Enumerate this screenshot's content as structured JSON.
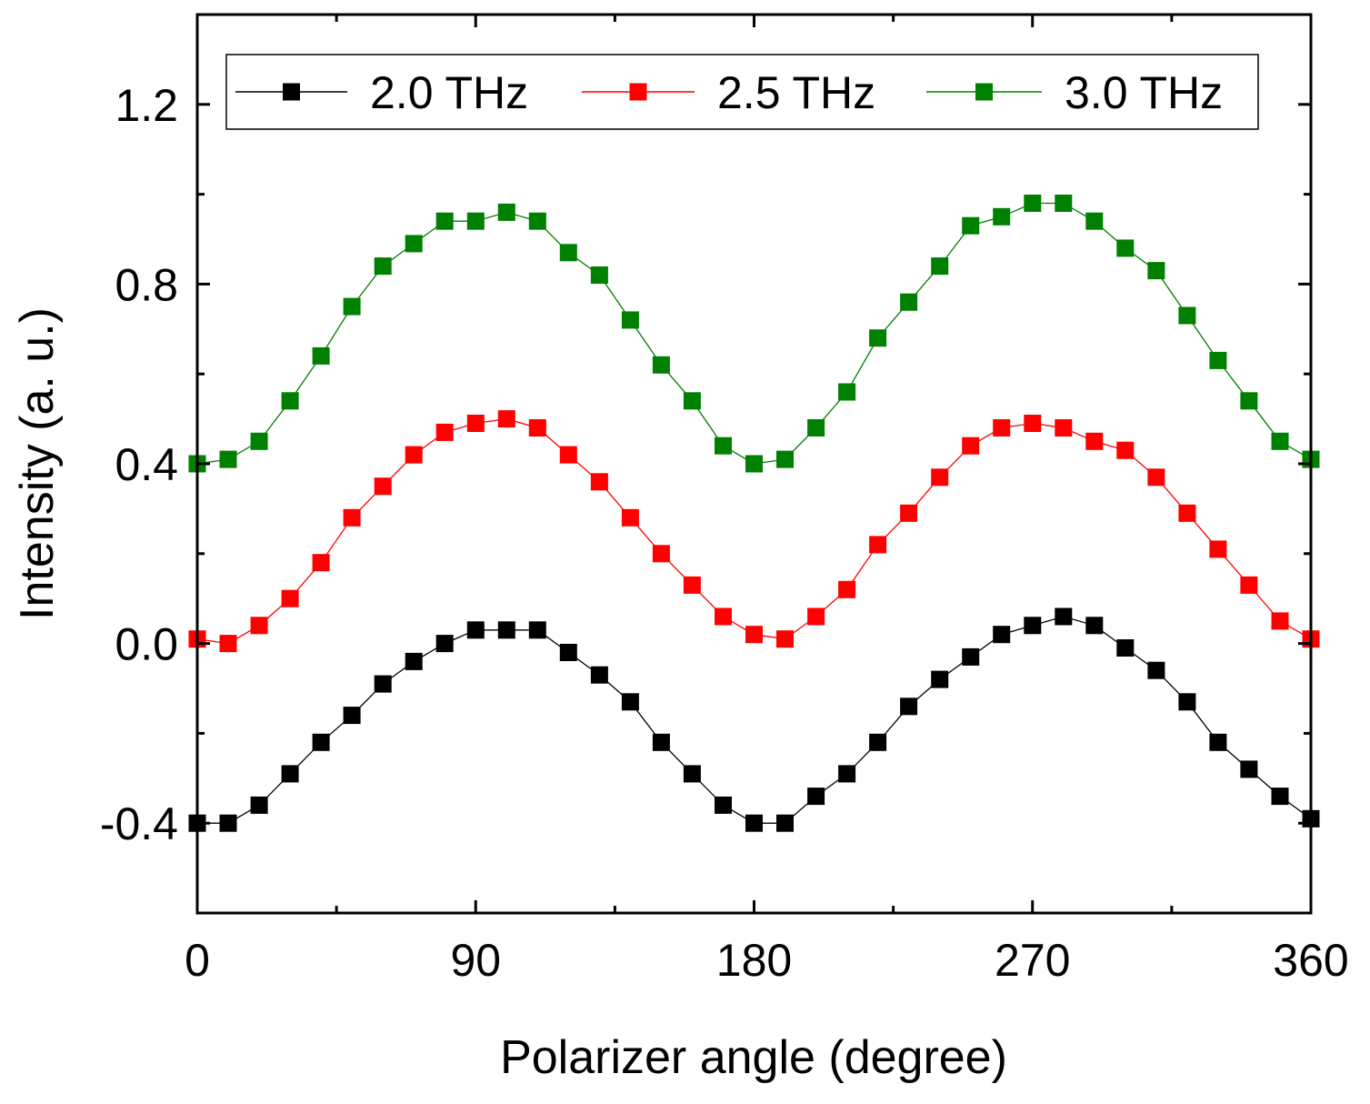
{
  "chart_data": {
    "type": "line",
    "title": "",
    "xlabel": "Polarizer angle (degree)",
    "ylabel": "Intensity (a. u.)",
    "xlim": [
      0,
      360
    ],
    "ylim": [
      -0.6,
      1.4
    ],
    "xticks": [
      0,
      90,
      180,
      270,
      360
    ],
    "xtick_labels": [
      "0",
      "90",
      "180",
      "270",
      "360"
    ],
    "yticks": [
      -0.4,
      0.0,
      0.4,
      0.8,
      1.2
    ],
    "ytick_labels": [
      "-0.4",
      "0.0",
      "0.4",
      "0.8",
      "1.2"
    ],
    "grid": false,
    "legend_position": "top",
    "x": [
      0,
      10,
      20,
      30,
      40,
      50,
      60,
      70,
      80,
      90,
      100,
      110,
      120,
      130,
      140,
      150,
      160,
      170,
      180,
      190,
      200,
      210,
      220,
      230,
      240,
      250,
      260,
      270,
      280,
      290,
      300,
      310,
      320,
      330,
      340,
      350,
      360
    ],
    "series": [
      {
        "name": "2.0 THz",
        "color": "#000000",
        "values": [
          -0.4,
          -0.4,
          -0.36,
          -0.29,
          -0.22,
          -0.16,
          -0.09,
          -0.04,
          0.0,
          0.03,
          0.03,
          0.03,
          -0.02,
          -0.07,
          -0.13,
          -0.22,
          -0.29,
          -0.36,
          -0.4,
          -0.4,
          -0.34,
          -0.29,
          -0.22,
          -0.14,
          -0.08,
          -0.03,
          0.02,
          0.04,
          0.06,
          0.04,
          -0.01,
          -0.06,
          -0.13,
          -0.22,
          -0.28,
          -0.34,
          -0.39
        ]
      },
      {
        "name": "2.5 THz",
        "color": "#ff0000",
        "values": [
          0.01,
          0.0,
          0.04,
          0.1,
          0.18,
          0.28,
          0.35,
          0.42,
          0.47,
          0.49,
          0.5,
          0.48,
          0.42,
          0.36,
          0.28,
          0.2,
          0.13,
          0.06,
          0.02,
          0.01,
          0.06,
          0.12,
          0.22,
          0.29,
          0.37,
          0.44,
          0.48,
          0.49,
          0.48,
          0.45,
          0.43,
          0.37,
          0.29,
          0.21,
          0.13,
          0.05,
          0.01
        ]
      },
      {
        "name": "3.0 THz",
        "color": "#008000",
        "values": [
          0.4,
          0.41,
          0.45,
          0.54,
          0.64,
          0.75,
          0.84,
          0.89,
          0.94,
          0.94,
          0.96,
          0.94,
          0.87,
          0.82,
          0.72,
          0.62,
          0.54,
          0.44,
          0.4,
          0.41,
          0.48,
          0.56,
          0.68,
          0.76,
          0.84,
          0.93,
          0.95,
          0.98,
          0.98,
          0.94,
          0.88,
          0.83,
          0.73,
          0.63,
          0.54,
          0.45,
          0.41
        ]
      }
    ]
  }
}
